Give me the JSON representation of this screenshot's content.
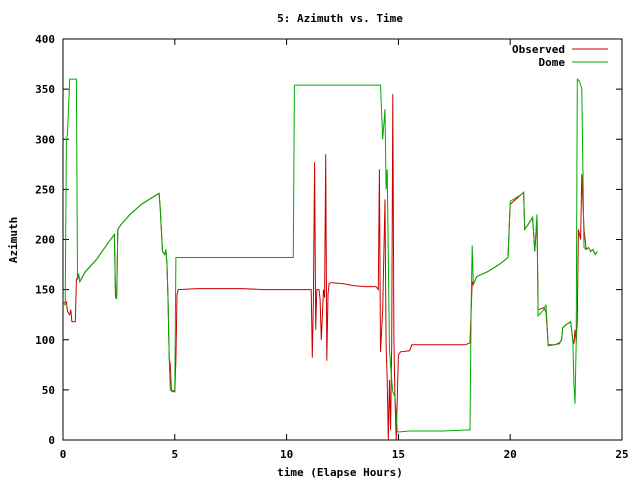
{
  "chart_data": {
    "type": "line",
    "title": "5: Azimuth vs. Time",
    "xlabel": "time (Elapse Hours)",
    "ylabel": "Azimuth",
    "xlim": [
      0,
      25
    ],
    "ylim": [
      0,
      400
    ],
    "xticks": [
      "0",
      "5",
      "10",
      "15",
      "20",
      "25"
    ],
    "yticks": [
      "0",
      "50",
      "100",
      "150",
      "200",
      "250",
      "300",
      "350",
      "400"
    ],
    "grid": false,
    "legend_position": "top-right",
    "series": [
      {
        "name": "Observed",
        "color": "#cc0000",
        "points": [
          [
            0.0,
            136
          ],
          [
            0.15,
            138
          ],
          [
            0.2,
            128
          ],
          [
            0.3,
            125
          ],
          [
            0.35,
            130
          ],
          [
            0.4,
            118
          ],
          [
            0.55,
            118
          ],
          [
            0.6,
            160
          ],
          [
            0.7,
            165
          ],
          [
            0.75,
            158
          ],
          [
            1.0,
            168
          ],
          [
            1.5,
            180
          ],
          [
            2.0,
            196
          ],
          [
            2.3,
            205
          ],
          [
            2.35,
            142
          ],
          [
            2.4,
            145
          ],
          [
            2.45,
            210
          ],
          [
            2.6,
            215
          ],
          [
            3.0,
            225
          ],
          [
            3.5,
            235
          ],
          [
            4.0,
            242
          ],
          [
            4.3,
            246
          ],
          [
            4.35,
            230
          ],
          [
            4.45,
            188
          ],
          [
            4.55,
            185
          ],
          [
            4.6,
            190
          ],
          [
            4.65,
            175
          ],
          [
            4.7,
            138
          ],
          [
            4.75,
            82
          ],
          [
            4.8,
            75
          ],
          [
            4.85,
            50
          ],
          [
            5.0,
            48
          ],
          [
            5.05,
            80
          ],
          [
            5.1,
            145
          ],
          [
            5.15,
            150
          ],
          [
            6.0,
            151
          ],
          [
            8.0,
            151
          ],
          [
            9.0,
            150
          ],
          [
            10.0,
            150
          ],
          [
            11.0,
            150
          ],
          [
            11.1,
            150
          ],
          [
            11.15,
            82
          ],
          [
            11.2,
            140
          ],
          [
            11.25,
            277
          ],
          [
            11.3,
            110
          ],
          [
            11.35,
            150
          ],
          [
            11.45,
            150
          ],
          [
            11.5,
            140
          ],
          [
            11.55,
            100
          ],
          [
            11.6,
            125
          ],
          [
            11.65,
            150
          ],
          [
            11.7,
            142
          ],
          [
            11.75,
            285
          ],
          [
            11.8,
            79
          ],
          [
            11.85,
            145
          ],
          [
            11.9,
            156
          ],
          [
            12.0,
            157
          ],
          [
            12.5,
            156
          ],
          [
            13.0,
            154
          ],
          [
            13.5,
            153
          ],
          [
            14.0,
            153
          ],
          [
            14.1,
            150
          ],
          [
            14.15,
            270
          ],
          [
            14.2,
            88
          ],
          [
            14.3,
            130
          ],
          [
            14.4,
            240
          ],
          [
            14.45,
            95
          ],
          [
            14.5,
            60
          ],
          [
            14.55,
            0
          ],
          [
            14.6,
            60
          ],
          [
            14.65,
            10
          ],
          [
            14.7,
            95
          ],
          [
            14.75,
            345
          ],
          [
            14.8,
            100
          ],
          [
            14.85,
            40
          ],
          [
            14.9,
            0
          ],
          [
            15.0,
            85
          ],
          [
            15.1,
            88
          ],
          [
            15.5,
            89
          ],
          [
            15.6,
            95
          ],
          [
            16.0,
            95
          ],
          [
            17.0,
            95
          ],
          [
            18.0,
            95
          ],
          [
            18.2,
            97
          ],
          [
            18.25,
            128
          ],
          [
            18.3,
            158
          ],
          [
            18.35,
            155
          ],
          [
            18.5,
            163
          ],
          [
            19.0,
            168
          ],
          [
            19.5,
            175
          ],
          [
            19.9,
            182
          ],
          [
            20.0,
            235
          ],
          [
            20.5,
            245
          ],
          [
            20.6,
            247
          ],
          [
            20.65,
            210
          ],
          [
            20.8,
            215
          ],
          [
            21.0,
            222
          ],
          [
            21.1,
            188
          ],
          [
            21.2,
            222
          ],
          [
            21.25,
            130
          ],
          [
            21.5,
            132
          ],
          [
            21.6,
            128
          ],
          [
            21.7,
            95
          ],
          [
            22.0,
            95
          ],
          [
            22.2,
            97
          ],
          [
            22.3,
            100
          ],
          [
            22.35,
            112
          ],
          [
            22.5,
            115
          ],
          [
            22.7,
            118
          ],
          [
            22.8,
            100
          ],
          [
            22.85,
            96
          ],
          [
            22.9,
            110
          ],
          [
            22.95,
            98
          ],
          [
            23.0,
            120
          ],
          [
            23.05,
            210
          ],
          [
            23.15,
            200
          ],
          [
            23.2,
            265
          ],
          [
            23.3,
            210
          ],
          [
            23.4,
            190
          ],
          [
            23.5,
            192
          ],
          [
            23.6,
            188
          ],
          [
            23.7,
            190
          ],
          [
            23.8,
            185
          ],
          [
            23.9,
            188
          ]
        ]
      },
      {
        "name": "Dome",
        "color": "#00aa00",
        "points": [
          [
            0.0,
            135
          ],
          [
            0.1,
            135
          ],
          [
            0.15,
            300
          ],
          [
            0.2,
            305
          ],
          [
            0.3,
            360
          ],
          [
            0.6,
            360
          ],
          [
            0.65,
            160
          ],
          [
            0.7,
            165
          ],
          [
            0.75,
            158
          ],
          [
            1.0,
            168
          ],
          [
            1.5,
            180
          ],
          [
            2.0,
            196
          ],
          [
            2.3,
            205
          ],
          [
            2.35,
            142
          ],
          [
            2.4,
            141
          ],
          [
            2.45,
            210
          ],
          [
            2.6,
            215
          ],
          [
            3.0,
            225
          ],
          [
            3.5,
            235
          ],
          [
            4.0,
            242
          ],
          [
            4.3,
            246
          ],
          [
            4.35,
            230
          ],
          [
            4.45,
            188
          ],
          [
            4.55,
            185
          ],
          [
            4.6,
            190
          ],
          [
            4.65,
            175
          ],
          [
            4.7,
            138
          ],
          [
            4.75,
            82
          ],
          [
            4.8,
            50
          ],
          [
            4.9,
            48
          ],
          [
            5.0,
            50
          ],
          [
            5.05,
            182
          ],
          [
            5.1,
            182
          ],
          [
            6.0,
            182
          ],
          [
            8.0,
            182
          ],
          [
            10.0,
            182
          ],
          [
            10.3,
            182
          ],
          [
            10.35,
            354
          ],
          [
            11.0,
            354
          ],
          [
            12.0,
            354
          ],
          [
            13.0,
            354
          ],
          [
            14.0,
            354
          ],
          [
            14.2,
            354
          ],
          [
            14.3,
            300
          ],
          [
            14.4,
            330
          ],
          [
            14.45,
            250
          ],
          [
            14.5,
            270
          ],
          [
            14.6,
            90
          ],
          [
            14.7,
            60
          ],
          [
            14.75,
            48
          ],
          [
            14.85,
            43
          ],
          [
            14.95,
            8
          ],
          [
            15.0,
            8
          ],
          [
            15.5,
            9
          ],
          [
            16.0,
            9
          ],
          [
            17.0,
            9
          ],
          [
            18.0,
            10
          ],
          [
            18.2,
            10
          ],
          [
            18.25,
            130
          ],
          [
            18.3,
            194
          ],
          [
            18.35,
            155
          ],
          [
            18.5,
            163
          ],
          [
            19.0,
            168
          ],
          [
            19.5,
            175
          ],
          [
            19.9,
            182
          ],
          [
            20.0,
            238
          ],
          [
            20.5,
            245
          ],
          [
            20.6,
            247
          ],
          [
            20.65,
            210
          ],
          [
            20.8,
            215
          ],
          [
            21.0,
            222
          ],
          [
            21.1,
            188
          ],
          [
            21.2,
            225
          ],
          [
            21.25,
            124
          ],
          [
            21.5,
            130
          ],
          [
            21.6,
            135
          ],
          [
            21.7,
            94
          ],
          [
            22.0,
            95
          ],
          [
            22.2,
            96
          ],
          [
            22.3,
            100
          ],
          [
            22.35,
            112
          ],
          [
            22.5,
            115
          ],
          [
            22.7,
            118
          ],
          [
            22.8,
            100
          ],
          [
            22.85,
            57
          ],
          [
            22.9,
            36
          ],
          [
            22.95,
            98
          ],
          [
            23.0,
            360
          ],
          [
            23.1,
            358
          ],
          [
            23.2,
            350
          ],
          [
            23.25,
            270
          ],
          [
            23.3,
            192
          ],
          [
            23.4,
            190
          ],
          [
            23.5,
            192
          ],
          [
            23.6,
            188
          ],
          [
            23.7,
            190
          ],
          [
            23.8,
            185
          ],
          [
            23.9,
            188
          ]
        ]
      }
    ]
  }
}
